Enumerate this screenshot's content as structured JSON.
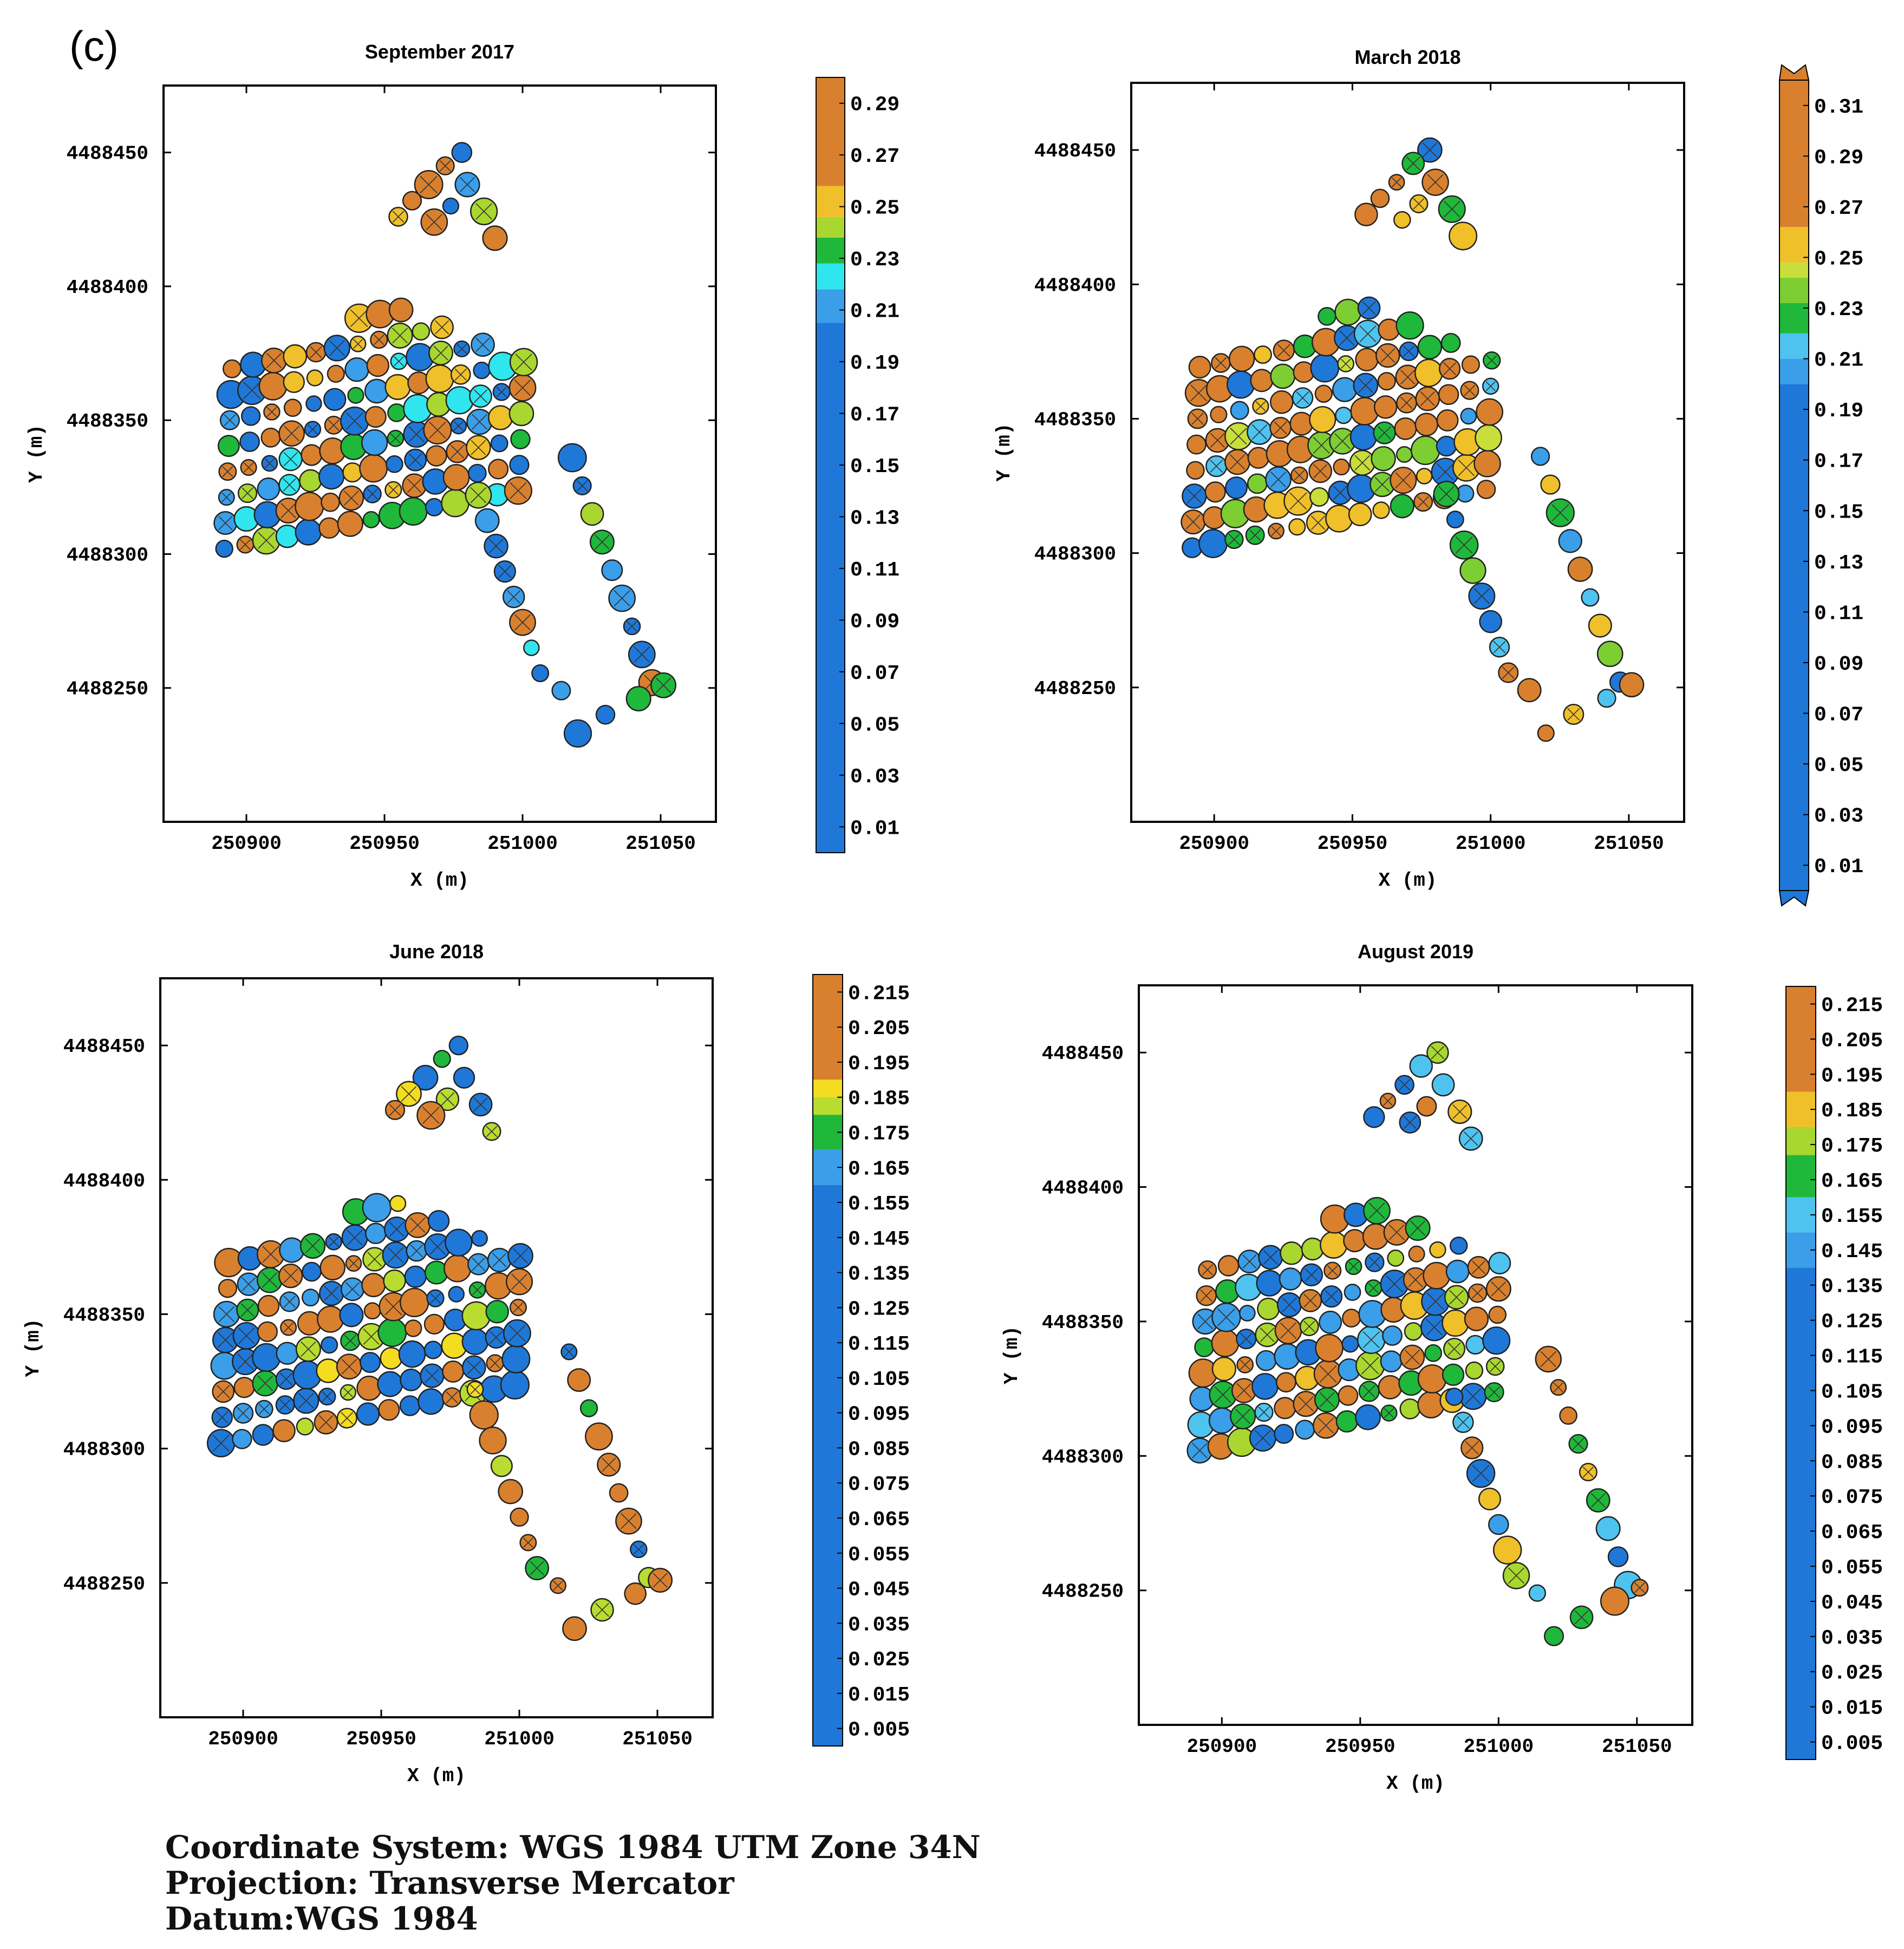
{
  "figure_label": "(c)",
  "footer": {
    "lines": [
      "Coordinate System: WGS 1984 UTM Zone 34N",
      "Projection: Transverse Mercator",
      "Datum:WGS 1984"
    ]
  },
  "chart_data": [
    {
      "type": "map",
      "title": "September 2017",
      "xlabel": "X (m)",
      "ylabel": "Y (m)",
      "xlim": [
        250870,
        251070
      ],
      "ylim": [
        4488200,
        4488475
      ],
      "xticks": [
        "250900",
        "250950",
        "251000",
        "251050"
      ],
      "yticks": [
        "4488250",
        "4488300",
        "4488350",
        "4488400",
        "4488450"
      ],
      "colorbar": {
        "labels": [
          "0.29",
          "0.27",
          "0.25",
          "0.23",
          "0.21",
          "0.19",
          "0.17",
          "0.15",
          "0.13",
          "0.11",
          "0.09",
          "0.07",
          "0.05",
          "0.03",
          "0.01"
        ],
        "range": [
          0.0,
          0.3
        ],
        "arrows": false,
        "bands": [
          {
            "from": 0.0,
            "to": 0.205,
            "color": "#1f78d8"
          },
          {
            "from": 0.205,
            "to": 0.218,
            "color": "#3b9ee8"
          },
          {
            "from": 0.218,
            "to": 0.228,
            "color": "#2fe6ee"
          },
          {
            "from": 0.228,
            "to": 0.238,
            "color": "#1fb83a"
          },
          {
            "from": 0.238,
            "to": 0.246,
            "color": "#a9d62f"
          },
          {
            "from": 0.246,
            "to": 0.258,
            "color": "#f0c02a"
          },
          {
            "from": 0.258,
            "to": 0.3,
            "color": "#d9802e"
          }
        ]
      }
    },
    {
      "type": "map",
      "title": "March 2018",
      "xlabel": "X (m)",
      "ylabel": "Y (m)",
      "xlim": [
        250870,
        251070
      ],
      "ylim": [
        4488200,
        4488475
      ],
      "xticks": [
        "250900",
        "250950",
        "251000",
        "251050"
      ],
      "yticks": [
        "4488250",
        "4488300",
        "4488350",
        "4488400",
        "4488450"
      ],
      "colorbar": {
        "labels": [
          "0.31",
          "0.29",
          "0.27",
          "0.25",
          "0.23",
          "0.21",
          "0.19",
          "0.17",
          "0.15",
          "0.13",
          "0.11",
          "0.09",
          "0.07",
          "0.05",
          "0.03",
          "0.01"
        ],
        "range": [
          0.0,
          0.32
        ],
        "arrows": true,
        "bands": [
          {
            "from": 0.0,
            "to": 0.2,
            "color": "#1f78d8"
          },
          {
            "from": 0.2,
            "to": 0.21,
            "color": "#3b9ee8"
          },
          {
            "from": 0.21,
            "to": 0.22,
            "color": "#4ec3f0"
          },
          {
            "from": 0.22,
            "to": 0.232,
            "color": "#1fb83a"
          },
          {
            "from": 0.232,
            "to": 0.242,
            "color": "#7cce33"
          },
          {
            "from": 0.242,
            "to": 0.248,
            "color": "#c8de3a"
          },
          {
            "from": 0.248,
            "to": 0.262,
            "color": "#f0c02a"
          },
          {
            "from": 0.262,
            "to": 0.32,
            "color": "#d9802e"
          }
        ]
      }
    },
    {
      "type": "map",
      "title": "June 2018",
      "xlabel": "X (m)",
      "ylabel": "Y (m)",
      "xlim": [
        250870,
        251070
      ],
      "ylim": [
        4488200,
        4488475
      ],
      "xticks": [
        "250900",
        "250950",
        "251000",
        "251050"
      ],
      "yticks": [
        "4488250",
        "4488300",
        "4488350",
        "4488400",
        "4488450"
      ],
      "colorbar": {
        "labels": [
          "0.215",
          "0.205",
          "0.195",
          "0.185",
          "0.175",
          "0.165",
          "0.155",
          "0.145",
          "0.135",
          "0.125",
          "0.115",
          "0.105",
          "0.095",
          "0.085",
          "0.075",
          "0.065",
          "0.055",
          "0.045",
          "0.035",
          "0.025",
          "0.015",
          "0.005"
        ],
        "range": [
          0.0,
          0.22
        ],
        "arrows": false,
        "bands": [
          {
            "from": 0.0,
            "to": 0.16,
            "color": "#1f78d8"
          },
          {
            "from": 0.16,
            "to": 0.17,
            "color": "#3b9ee8"
          },
          {
            "from": 0.17,
            "to": 0.18,
            "color": "#1fb83a"
          },
          {
            "from": 0.18,
            "to": 0.185,
            "color": "#b8dc30"
          },
          {
            "from": 0.185,
            "to": 0.19,
            "color": "#f4dc20"
          },
          {
            "from": 0.19,
            "to": 0.22,
            "color": "#d9802e"
          }
        ]
      }
    },
    {
      "type": "map",
      "title": "August 2019",
      "xlabel": "X (m)",
      "ylabel": "Y (m)",
      "xlim": [
        250870,
        251070
      ],
      "ylim": [
        4488200,
        4488475
      ],
      "xticks": [
        "250900",
        "250950",
        "251000",
        "251050"
      ],
      "yticks": [
        "4488250",
        "4488300",
        "4488350",
        "4488400",
        "4488450"
      ],
      "colorbar": {
        "labels": [
          "0.215",
          "0.205",
          "0.195",
          "0.185",
          "0.175",
          "0.165",
          "0.155",
          "0.145",
          "0.135",
          "0.125",
          "0.115",
          "0.105",
          "0.095",
          "0.085",
          "0.075",
          "0.065",
          "0.055",
          "0.045",
          "0.035",
          "0.025",
          "0.015",
          "0.005"
        ],
        "range": [
          0.0,
          0.22
        ],
        "arrows": false,
        "bands": [
          {
            "from": 0.0,
            "to": 0.14,
            "color": "#1f78d8"
          },
          {
            "from": 0.14,
            "to": 0.15,
            "color": "#3b9ee8"
          },
          {
            "from": 0.15,
            "to": 0.16,
            "color": "#4ec3f0"
          },
          {
            "from": 0.16,
            "to": 0.172,
            "color": "#1fb83a"
          },
          {
            "from": 0.172,
            "to": 0.18,
            "color": "#a9d62f"
          },
          {
            "from": 0.18,
            "to": 0.19,
            "color": "#f0c02a"
          },
          {
            "from": 0.19,
            "to": 0.22,
            "color": "#d9802e"
          }
        ]
      }
    }
  ]
}
